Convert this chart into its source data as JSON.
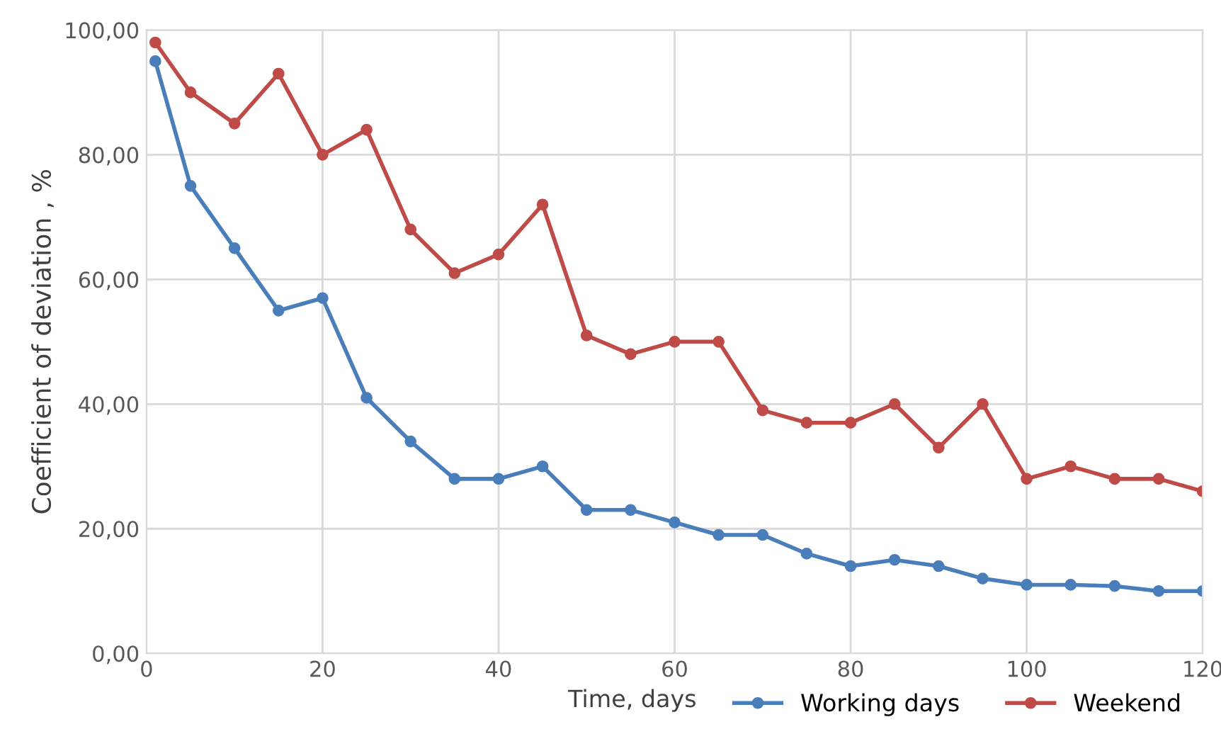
{
  "chart_data": {
    "type": "line",
    "xlabel": "Time, days",
    "ylabel": "Coefficient of deviation , %",
    "x": [
      1,
      5,
      10,
      15,
      20,
      25,
      30,
      35,
      40,
      45,
      50,
      55,
      60,
      65,
      70,
      75,
      80,
      85,
      90,
      95,
      100,
      105,
      110,
      115,
      120
    ],
    "series": [
      {
        "name": "Working days",
        "color": "#4a7ebb",
        "values": [
          95,
          75,
          65,
          55,
          57,
          41,
          34,
          28,
          28,
          30,
          23,
          23,
          21,
          19,
          19,
          16,
          14,
          15,
          14,
          12,
          11,
          11,
          10.8,
          10,
          10
        ]
      },
      {
        "name": "Weekend",
        "color": "#be4b48",
        "values": [
          98,
          90,
          85,
          93,
          80,
          84,
          68,
          61,
          64,
          72,
          51,
          48,
          50,
          50,
          39,
          37,
          37,
          40,
          33,
          40,
          28,
          30,
          28,
          28,
          26
        ]
      }
    ],
    "xlim": [
      0,
      120
    ],
    "xticks": [
      0,
      20,
      40,
      60,
      80,
      100,
      120
    ],
    "ylim": [
      0,
      100
    ],
    "yticks": [
      {
        "value": 0,
        "label": "0,00"
      },
      {
        "value": 20,
        "label": "20,00"
      },
      {
        "value": 40,
        "label": "40,00"
      },
      {
        "value": 60,
        "label": "60,00"
      },
      {
        "value": 80,
        "label": "80,00"
      },
      {
        "value": 100,
        "label": "100,00"
      }
    ],
    "grid": true,
    "legend": "bottom right",
    "marker": "circle",
    "line_style": "solid"
  }
}
